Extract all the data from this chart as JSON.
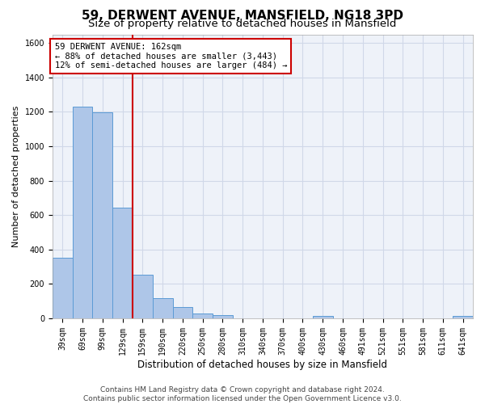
{
  "title1": "59, DERWENT AVENUE, MANSFIELD, NG18 3PD",
  "title2": "Size of property relative to detached houses in Mansfield",
  "xlabel": "Distribution of detached houses by size in Mansfield",
  "ylabel": "Number of detached properties",
  "categories": [
    "39sqm",
    "69sqm",
    "99sqm",
    "129sqm",
    "159sqm",
    "190sqm",
    "220sqm",
    "250sqm",
    "280sqm",
    "310sqm",
    "340sqm",
    "370sqm",
    "400sqm",
    "430sqm",
    "460sqm",
    "491sqm",
    "521sqm",
    "551sqm",
    "581sqm",
    "611sqm",
    "641sqm"
  ],
  "values": [
    350,
    1230,
    1195,
    645,
    255,
    115,
    65,
    30,
    20,
    0,
    0,
    0,
    0,
    15,
    0,
    0,
    0,
    0,
    0,
    0,
    15
  ],
  "bar_color": "#aec6e8",
  "bar_edge_color": "#5b9bd5",
  "vline_index": 4,
  "annotation_line1": "59 DERWENT AVENUE: 162sqm",
  "annotation_line2": "← 88% of detached houses are smaller (3,443)",
  "annotation_line3": "12% of semi-detached houses are larger (484) →",
  "annotation_box_color": "#cc0000",
  "vline_color": "#cc0000",
  "ylim": [
    0,
    1650
  ],
  "yticks": [
    0,
    200,
    400,
    600,
    800,
    1000,
    1200,
    1400,
    1600
  ],
  "grid_color": "#d0d8e8",
  "background_color": "#eef2f9",
  "footer1": "Contains HM Land Registry data © Crown copyright and database right 2024.",
  "footer2": "Contains public sector information licensed under the Open Government Licence v3.0.",
  "title1_fontsize": 11,
  "title2_fontsize": 9.5,
  "annotation_fontsize": 7.5,
  "footer_fontsize": 6.5,
  "xlabel_fontsize": 8.5,
  "ylabel_fontsize": 8,
  "tick_fontsize": 7
}
